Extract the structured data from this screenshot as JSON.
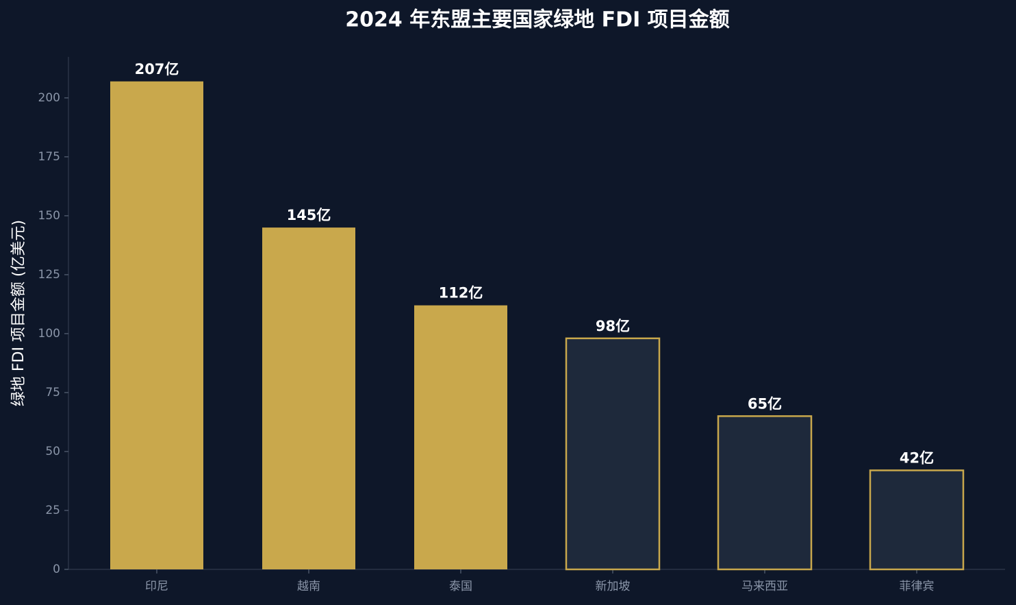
{
  "chart_data": {
    "type": "bar",
    "title": "2024 年东盟主要国家绿地 FDI 项目金额",
    "y_label": "绿地 FDI 项目金额 (亿美元)",
    "categories": [
      "印尼",
      "越南",
      "泰国",
      "新加坡",
      "马来西亚",
      "菲律宾"
    ],
    "values": [
      207,
      145,
      112,
      98,
      65,
      42
    ],
    "value_labels": [
      "207亿",
      "145亿",
      "112亿",
      "98亿",
      "65亿",
      "42亿"
    ],
    "colors": [
      "#c9a84c",
      "#c9a84c",
      "#c9a84c",
      "#1e293b",
      "#1e293b",
      "#1e293b"
    ],
    "edgecolor": "#c9a84c",
    "ylim": [
      0,
      217.4
    ],
    "yticks": [
      0,
      25,
      50,
      75,
      100,
      125,
      150,
      175,
      200
    ],
    "grid": false
  }
}
